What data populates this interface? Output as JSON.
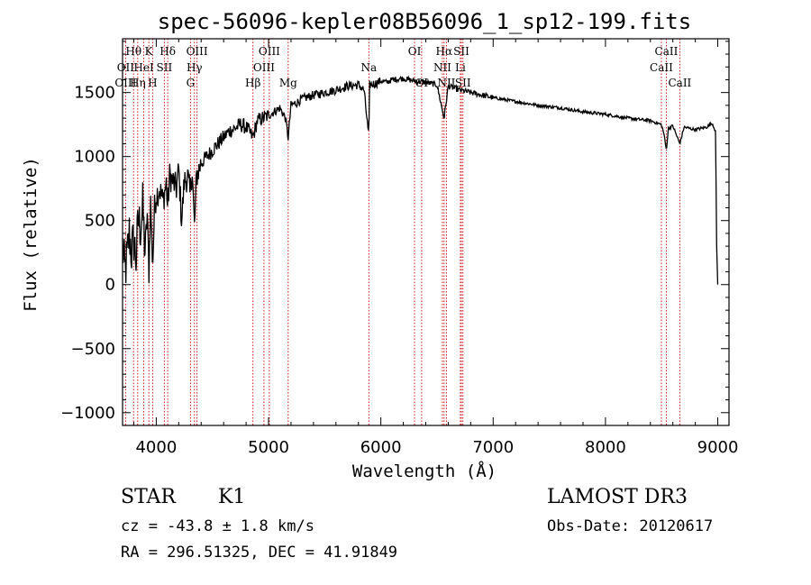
{
  "chart_data": {
    "type": "line",
    "title": "spec-56096-kepler08B56096_1_sp12-199.fits",
    "xlabel": "Wavelength (Å)",
    "ylabel": "Flux (relative)",
    "xlim": [
      3700,
      9100
    ],
    "ylim": [
      -1100,
      1920
    ],
    "xticks": [
      4000,
      5000,
      6000,
      7000,
      8000,
      9000
    ],
    "yticks": [
      -1000,
      -500,
      0,
      500,
      1000,
      1500
    ],
    "tick_labels_x": [
      "4000",
      "5000",
      "6000",
      "7000",
      "8000",
      "9000"
    ],
    "tick_labels_y": [
      "-1000",
      "-500",
      "0",
      "500",
      "1000",
      "1500"
    ],
    "series": [
      {
        "name": "spectrum",
        "x": [
          3700,
          3720,
          3740,
          3760,
          3780,
          3800,
          3820,
          3840,
          3860,
          3880,
          3900,
          3920,
          3935,
          3950,
          3968,
          3985,
          4000,
          4030,
          4060,
          4090,
          4101,
          4120,
          4150,
          4180,
          4200,
          4226,
          4250,
          4280,
          4300,
          4320,
          4340,
          4360,
          4400,
          4450,
          4500,
          4550,
          4600,
          4650,
          4700,
          4750,
          4800,
          4861,
          4900,
          4950,
          5000,
          5050,
          5100,
          5150,
          5175,
          5200,
          5250,
          5300,
          5400,
          5500,
          5600,
          5700,
          5800,
          5850,
          5893,
          5900,
          5950,
          6000,
          6050,
          6100,
          6200,
          6300,
          6400,
          6500,
          6563,
          6600,
          6700,
          6800,
          6900,
          7000,
          7200,
          7400,
          7600,
          7800,
          8000,
          8200,
          8400,
          8498,
          8520,
          8542,
          8560,
          8600,
          8662,
          8700,
          8800,
          8900,
          8950,
          8980,
          8990,
          9000
        ],
        "values": [
          300,
          100,
          200,
          400,
          250,
          350,
          200,
          500,
          450,
          600,
          250,
          550,
          100,
          650,
          150,
          600,
          700,
          750,
          650,
          800,
          600,
          850,
          800,
          750,
          900,
          500,
          800,
          850,
          700,
          900,
          450,
          850,
          950,
          1000,
          1050,
          1100,
          1150,
          1200,
          1220,
          1250,
          1230,
          1150,
          1280,
          1300,
          1320,
          1350,
          1380,
          1300,
          1150,
          1400,
          1420,
          1450,
          1480,
          1500,
          1520,
          1550,
          1560,
          1520,
          1150,
          1560,
          1570,
          1590,
          1580,
          1600,
          1610,
          1590,
          1580,
          1560,
          1300,
          1550,
          1520,
          1500,
          1480,
          1460,
          1430,
          1400,
          1380,
          1350,
          1330,
          1300,
          1280,
          1250,
          1180,
          1050,
          1220,
          1240,
          1100,
          1230,
          1210,
          1230,
          1260,
          1200,
          300,
          0
        ]
      }
    ],
    "spectral_lines": [
      {
        "label": "Hθ",
        "wave": 3798,
        "row": 1
      },
      {
        "label": "OII",
        "wave": 3727,
        "row": 2
      },
      {
        "label": "OIII",
        "wave": 3727,
        "row": 3
      },
      {
        "label": "K",
        "wave": 3934,
        "row": 1
      },
      {
        "label": "HeI",
        "wave": 3889,
        "row": 2
      },
      {
        "label": "Hη",
        "wave": 3835,
        "row": 3
      },
      {
        "label": "Hδ",
        "wave": 4102,
        "row": 1
      },
      {
        "label": "SII",
        "wave": 4072,
        "row": 2
      },
      {
        "label": "H",
        "wave": 3968,
        "row": 3
      },
      {
        "label": "OIII",
        "wave": 4363,
        "row": 1
      },
      {
        "label": "Hγ",
        "wave": 4340,
        "row": 2
      },
      {
        "label": "G",
        "wave": 4305,
        "row": 3
      },
      {
        "label": "OIII",
        "wave": 5007,
        "row": 1
      },
      {
        "label": "OIII",
        "wave": 4959,
        "row": 2
      },
      {
        "label": "Hβ",
        "wave": 4861,
        "row": 3
      },
      {
        "label": "Mg",
        "wave": 5175,
        "row": 3
      },
      {
        "label": "Na",
        "wave": 5893,
        "row": 2
      },
      {
        "label": "OI",
        "wave": 6300,
        "row": 1
      },
      {
        "label": "OI",
        "wave": 6363,
        "row": 3
      },
      {
        "label": "Hα",
        "wave": 6563,
        "row": 1
      },
      {
        "label": "NII",
        "wave": 6548,
        "row": 2
      },
      {
        "label": "NII",
        "wave": 6584,
        "row": 3
      },
      {
        "label": "SII",
        "wave": 6717,
        "row": 1
      },
      {
        "label": "Li",
        "wave": 6708,
        "row": 2
      },
      {
        "label": "SII",
        "wave": 6731,
        "row": 3
      },
      {
        "label": "CaII",
        "wave": 8542,
        "row": 1
      },
      {
        "label": "CaII",
        "wave": 8498,
        "row": 2
      },
      {
        "label": "CaII",
        "wave": 8662,
        "row": 3
      }
    ]
  },
  "footer": {
    "object_class": "STAR",
    "subclass": "K1",
    "survey": "LAMOST DR3",
    "redshift": "cz = -43.8 ± 1.8 km/s",
    "obs_date": "Obs-Date: 20120617",
    "coords": "RA = 296.51325, DEC =  41.91849"
  },
  "colors": {
    "line": "#000000",
    "marker": "#cc0000"
  }
}
